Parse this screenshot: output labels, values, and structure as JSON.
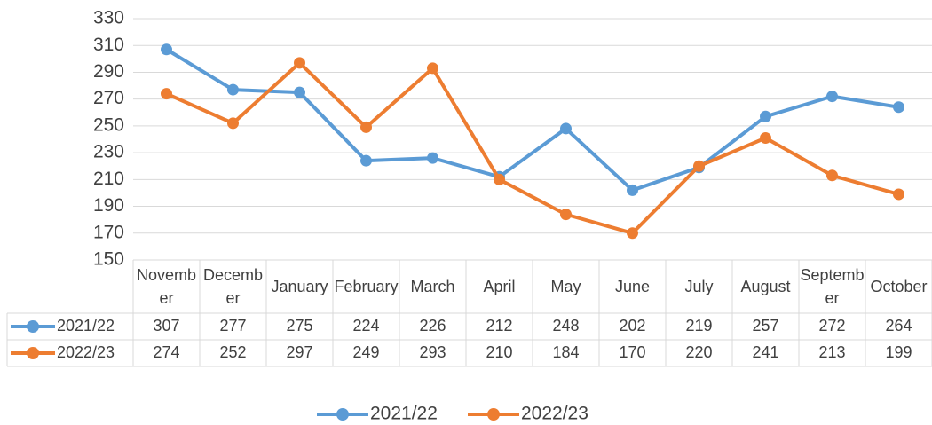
{
  "chart_data": {
    "type": "line",
    "categories": [
      "November",
      "December",
      "January",
      "February",
      "March",
      "April",
      "May",
      "June",
      "July",
      "August",
      "September",
      "October"
    ],
    "series": [
      {
        "name": "2021/22",
        "color": "#5b9bd5",
        "values": [
          307,
          277,
          275,
          224,
          226,
          212,
          248,
          202,
          219,
          257,
          272,
          264
        ]
      },
      {
        "name": "2022/23",
        "color": "#ed7d31",
        "values": [
          274,
          252,
          297,
          249,
          293,
          210,
          184,
          170,
          220,
          241,
          213,
          199
        ]
      }
    ],
    "ylim": [
      150,
      330
    ],
    "yticks": [
      150,
      170,
      190,
      210,
      230,
      250,
      270,
      290,
      310,
      330
    ],
    "grid": true,
    "legend": "bottom",
    "data_table": true
  }
}
